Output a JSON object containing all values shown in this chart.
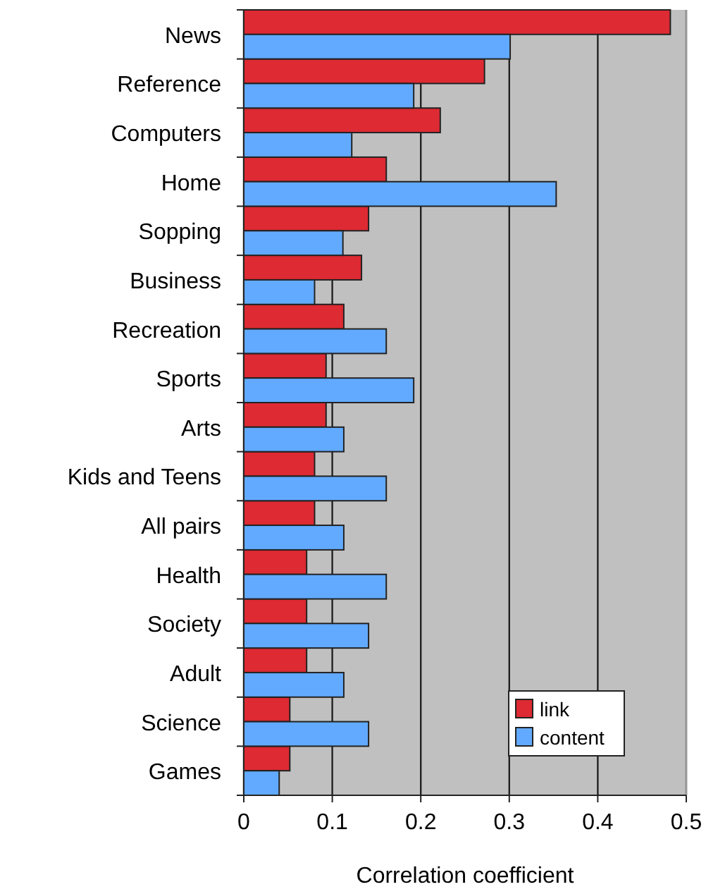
{
  "chart_data": {
    "type": "bar",
    "orientation": "horizontal",
    "xlabel": "Correlation coefficient",
    "categories": [
      "News",
      "Reference",
      "Computers",
      "Home",
      "Sopping",
      "Business",
      "Recreation",
      "Sports",
      "Arts",
      "Kids and Teens",
      "All pairs",
      "Health",
      "Society",
      "Adult",
      "Science",
      "Games"
    ],
    "series": [
      {
        "name": "link",
        "color": "#dd2a33",
        "values": [
          0.482,
          0.272,
          0.222,
          0.161,
          0.141,
          0.133,
          0.113,
          0.093,
          0.093,
          0.08,
          0.08,
          0.071,
          0.071,
          0.071,
          0.052,
          0.052
        ]
      },
      {
        "name": "content",
        "color": "#62aaff",
        "values": [
          0.301,
          0.192,
          0.122,
          0.353,
          0.112,
          0.08,
          0.161,
          0.192,
          0.113,
          0.161,
          0.113,
          0.161,
          0.141,
          0.113,
          0.141,
          0.04
        ]
      }
    ],
    "xlim": [
      0,
      0.5
    ],
    "xticks": [
      0,
      0.1,
      0.2,
      0.3,
      0.4,
      0.5
    ],
    "grid": "x",
    "legend": "bottom right"
  }
}
